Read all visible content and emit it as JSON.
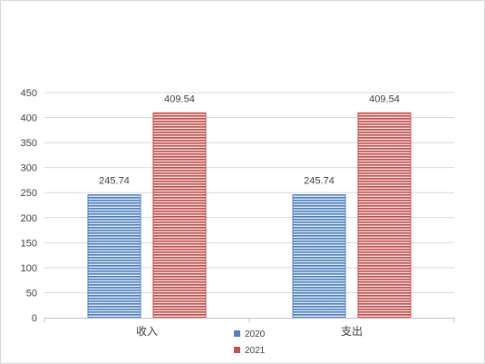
{
  "chart_data": {
    "type": "bar",
    "categories": [
      "收入",
      "支出"
    ],
    "series": [
      {
        "name": "2020",
        "values": [
          245.74,
          245.74
        ],
        "color": "#4f81bd"
      },
      {
        "name": "2021",
        "values": [
          409.54,
          409.54
        ],
        "color": "#c0504d"
      }
    ],
    "ylim": [
      0,
      450
    ],
    "yticks": [
      "0",
      "50",
      "100",
      "150",
      "200",
      "250",
      "300",
      "350",
      "400",
      "450"
    ],
    "data_labels": true,
    "grid": true,
    "legend": "bottom"
  }
}
